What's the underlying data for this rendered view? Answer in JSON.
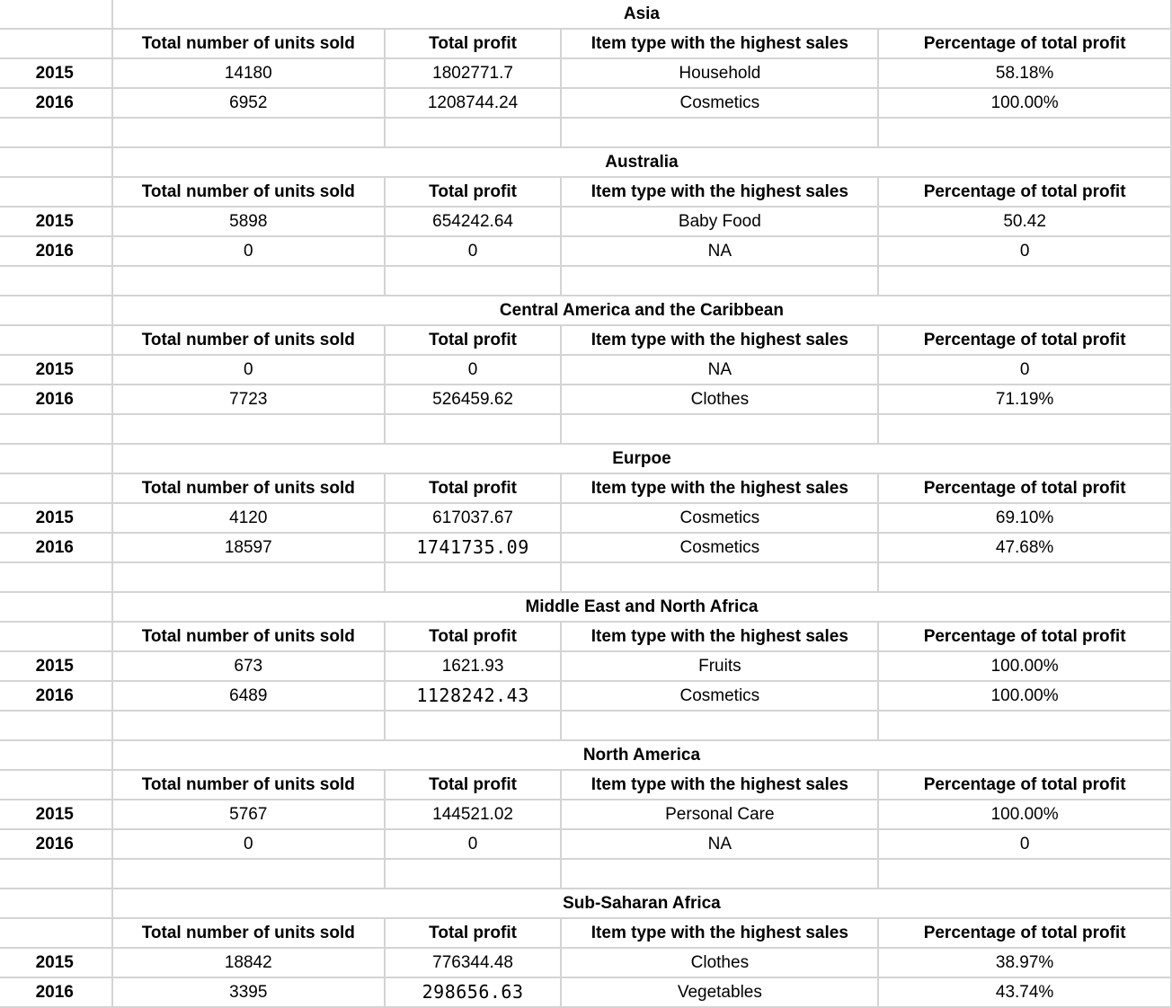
{
  "headers": {
    "units": "Total number of units sold",
    "profit": "Total profit",
    "item": "Item type with the highest sales",
    "percent": "Percentage of total profit"
  },
  "regions": [
    {
      "name": "Asia",
      "rows": [
        {
          "year": "2015",
          "units": "14180",
          "profit": "1802771.7",
          "item": "Household",
          "percent": "58.18%"
        },
        {
          "year": "2016",
          "units": "6952",
          "profit": "1208744.24",
          "item": "Cosmetics",
          "percent": "100.00%"
        }
      ]
    },
    {
      "name": "Australia",
      "rows": [
        {
          "year": "2015",
          "units": "5898",
          "profit": "654242.64",
          "item": "Baby Food",
          "percent": "50.42"
        },
        {
          "year": "2016",
          "units": "0",
          "profit": "0",
          "item": "NA",
          "percent": "0"
        }
      ]
    },
    {
      "name": "Central America and the Caribbean",
      "rows": [
        {
          "year": "2015",
          "units": "0",
          "profit": "0",
          "item": "NA",
          "percent": "0"
        },
        {
          "year": "2016",
          "units": "7723",
          "profit": "526459.62",
          "item": "Clothes",
          "percent": "71.19%"
        }
      ]
    },
    {
      "name": "Eurpoe",
      "rows": [
        {
          "year": "2015",
          "units": "4120",
          "profit": "617037.67",
          "item": "Cosmetics",
          "percent": "69.10%"
        },
        {
          "year": "2016",
          "units": "18597",
          "profit": "1741735.09",
          "item": "Cosmetics",
          "percent": "47.68%"
        }
      ]
    },
    {
      "name": "Middle East and North Africa",
      "rows": [
        {
          "year": "2015",
          "units": "673",
          "profit": "1621.93",
          "item": "Fruits",
          "percent": "100.00%"
        },
        {
          "year": "2016",
          "units": "6489",
          "profit": "1128242.43",
          "item": "Cosmetics",
          "percent": "100.00%"
        }
      ]
    },
    {
      "name": "North America",
      "rows": [
        {
          "year": "2015",
          "units": "5767",
          "profit": "144521.02",
          "item": "Personal Care",
          "percent": "100.00%"
        },
        {
          "year": "2016",
          "units": "0",
          "profit": "0",
          "item": "NA",
          "percent": "0"
        }
      ]
    },
    {
      "name": "Sub-Saharan Africa",
      "rows": [
        {
          "year": "2015",
          "units": "18842",
          "profit": "776344.48",
          "item": "Clothes",
          "percent": "38.97%"
        },
        {
          "year": "2016",
          "units": "3395",
          "profit": "298656.63",
          "item": "Vegetables",
          "percent": "43.74%"
        }
      ]
    }
  ]
}
